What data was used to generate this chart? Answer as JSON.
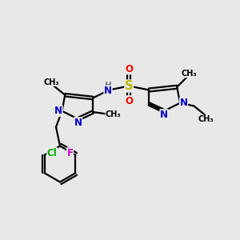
{
  "bg_color": "#e8e8e8",
  "bond_color": "#000000",
  "atom_colors": {
    "N": "#0000cc",
    "S": "#bbbb00",
    "O": "#ff0000",
    "F": "#cc00cc",
    "Cl": "#00aa00",
    "H": "#777777",
    "C": "#000000"
  },
  "lw": 1.6,
  "font_size": 8.5,
  "fig_size": [
    3.0,
    3.0
  ],
  "dpi": 100,
  "xlim": [
    0,
    12
  ],
  "ylim": [
    0,
    12
  ]
}
